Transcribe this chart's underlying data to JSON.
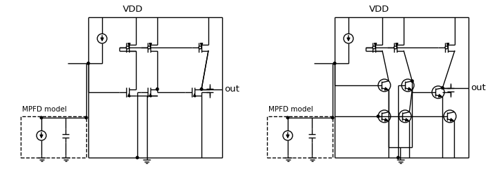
{
  "figsize": [
    7.13,
    2.79
  ],
  "dpi": 100,
  "bg": "#ffffff",
  "lw": 1.0,
  "fs": 9.5,
  "left_vdd_label": "VDD",
  "right_vdd_label": "VDD",
  "out_label": "out",
  "mpfd_label": "MPFD model"
}
